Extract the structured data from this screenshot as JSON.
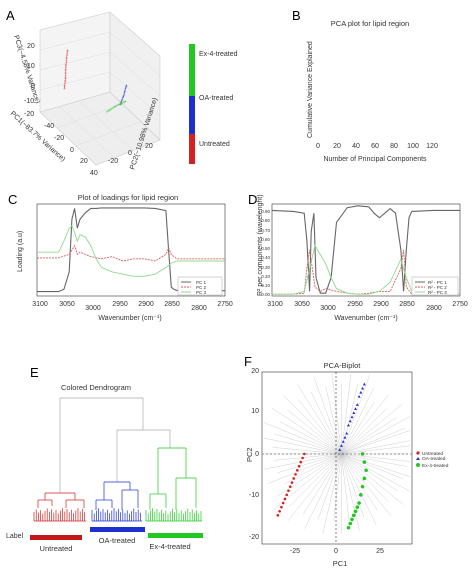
{
  "colors": {
    "ex4": "#22c822",
    "oa": "#1e2fd0",
    "untreated": "#d42020",
    "pc1": "#666666",
    "pc2": "#d95f5f",
    "pc3": "#8fd98f",
    "tree": "#aaaaaa",
    "biplot_lines": "#bbbbbb"
  },
  "panelA": {
    "letter": "A",
    "zlabel": "PC3(~4.58% Variance)",
    "xlabel": "PC1(~83.7% Variance)",
    "ylabel": "PC2(~10.98% Variance)",
    "zticks": [
      "20",
      "10",
      "0",
      "-10",
      "-20"
    ],
    "xticks": [
      "-40",
      "-20",
      "0",
      "20",
      "40"
    ],
    "yticks": [
      "-20",
      "0",
      "20"
    ],
    "legend": [
      "Ex-4-treated",
      "OA-treated",
      "Untreated"
    ]
  },
  "panelB": {
    "letter": "B",
    "title": "PCA plot for lipid region",
    "ylabel": "Cumulative Variance Explained",
    "xlabel": "Number of Principal Components",
    "xticks": [
      "0",
      "20",
      "40",
      "60",
      "80",
      "100",
      "120"
    ]
  },
  "panelC": {
    "letter": "C",
    "title": "Plot of loadings for lipid region",
    "ylabel": "Loading (a.u)",
    "xlabel": "Wavenumber (cm⁻¹)",
    "xticks": [
      "3100",
      "3050",
      "3000",
      "2950",
      "2900",
      "2850",
      "2800",
      "2750"
    ],
    "legend": [
      "PC 1",
      "PC 2",
      "PC 3"
    ]
  },
  "panelD": {
    "letter": "D",
    "ylabel": "R² per components (wavelenght)",
    "xlabel": "Wavenumber (cm⁻¹)",
    "xticks": [
      "3100",
      "3050",
      "3000",
      "2950",
      "2900",
      "2850",
      "2800",
      "2750"
    ],
    "yticks": [
      "0.00",
      "0.10",
      "0.20",
      "0.30",
      "0.40",
      "0.50",
      "0.60",
      "0.70",
      "0.80",
      "0.90"
    ],
    "legend": [
      "R² - PC 1",
      "R² - PC 2",
      "R² - PC 3"
    ]
  },
  "panelE": {
    "letter": "E",
    "title": "Colored Dendrogram",
    "label_caption": "Label",
    "groups": [
      "Untreated",
      "OA-treated",
      "Ex-4-treated"
    ]
  },
  "panelF": {
    "letter": "F",
    "title": "PCA-Biplot",
    "xlabel": "PC1",
    "ylabel": "PC2",
    "xticks": [
      "-25",
      "0",
      "25"
    ],
    "yticks": [
      "20",
      "10",
      "0",
      "-10",
      "-20"
    ],
    "legend": [
      "Untreated",
      "OA-treated",
      "Ex-4-treated"
    ]
  },
  "chart_data": [
    {
      "type": "scatter",
      "panel": "A",
      "xlabel": "PC1(~83.7% Variance)",
      "ylabel": "PC2(~10.98% Variance)",
      "zlabel": "PC3(~4.58% Variance)",
      "series": [
        {
          "name": "Untreated",
          "description_points": [
            [
              -30,
              -5,
              15
            ],
            [
              -28,
              -8,
              10
            ],
            [
              -26,
              -10,
              5
            ],
            [
              -25,
              -12,
              0
            ]
          ]
        },
        {
          "name": "OA-treated",
          "description_points": [
            [
              5,
              20,
              0
            ],
            [
              8,
              15,
              -2
            ],
            [
              10,
              10,
              -4
            ]
          ]
        },
        {
          "name": "Ex-4-treated",
          "description_points": [
            [
              20,
              -10,
              5
            ],
            [
              25,
              -5,
              8
            ],
            [
              30,
              0,
              10
            ]
          ]
        }
      ]
    },
    {
      "type": "line",
      "panel": "C",
      "title": "Plot of loadings for lipid region",
      "xlabel": "Wavenumber (cm⁻¹)",
      "ylabel": "Loading (a.u)",
      "series": [
        {
          "name": "PC 1",
          "x": [
            3100,
            3060,
            3050,
            3040,
            3035,
            3030,
            3025,
            3020,
            3010,
            3000,
            2990,
            2980,
            2960,
            2940,
            2920,
            2900,
            2880,
            2860,
            2855,
            2850,
            2845,
            2840,
            2800,
            2750
          ],
          "y": [
            -0.95,
            -0.95,
            -0.9,
            -0.5,
            0.7,
            0.95,
            0.5,
            0.7,
            0.85,
            0.95,
            0.95,
            0.96,
            0.96,
            0.96,
            0.96,
            0.96,
            0.95,
            0.9,
            0.0,
            -0.85,
            -0.9,
            -0.92,
            -0.93,
            -0.93
          ]
        },
        {
          "name": "PC 2",
          "x": [
            3100,
            3060,
            3040,
            3030,
            3025,
            3020,
            3000,
            2980,
            2960,
            2940,
            2920,
            2900,
            2880,
            2860,
            2855,
            2850,
            2840,
            2800,
            2750
          ],
          "y": [
            -0.18,
            -0.18,
            -0.1,
            0.1,
            -0.1,
            -0.05,
            -0.15,
            -0.2,
            -0.15,
            -0.25,
            -0.2,
            -0.2,
            -0.25,
            -0.1,
            0.05,
            -0.1,
            -0.2,
            -0.2,
            -0.2
          ]
        },
        {
          "name": "PC 3",
          "x": [
            3100,
            3060,
            3050,
            3040,
            3035,
            3030,
            3025,
            3020,
            3010,
            3000,
            2990,
            2980,
            2960,
            2940,
            2920,
            2900,
            2880,
            2860,
            2850,
            2840,
            2800,
            2750
          ],
          "y": [
            -0.05,
            -0.05,
            0.2,
            0.5,
            0.55,
            0.4,
            0.2,
            0.35,
            0.3,
            0.1,
            -0.2,
            -0.4,
            -0.5,
            -0.55,
            -0.6,
            -0.6,
            -0.55,
            -0.4,
            -0.3,
            -0.25,
            -0.25,
            -0.25
          ]
        }
      ]
    },
    {
      "type": "line",
      "panel": "D",
      "xlabel": "Wavenumber (cm⁻¹)",
      "ylabel": "R² per components (wavelenght)",
      "ylim": [
        0,
        1
      ],
      "series": [
        {
          "name": "R² - PC 1",
          "x": [
            3100,
            3060,
            3040,
            3035,
            3030,
            3027,
            3022,
            3018,
            3010,
            3000,
            2990,
            2980,
            2960,
            2940,
            2920,
            2910,
            2900,
            2890,
            2880,
            2870,
            2860,
            2855,
            2850,
            2845,
            2840,
            2800,
            2750
          ],
          "y": [
            0.93,
            0.92,
            0.9,
            0.6,
            0.05,
            0.7,
            0.9,
            0.2,
            0.03,
            0.03,
            0.2,
            0.8,
            0.96,
            0.98,
            0.97,
            0.9,
            0.85,
            0.9,
            0.95,
            0.9,
            0.5,
            0.05,
            0.5,
            0.85,
            0.92,
            0.93,
            0.93
          ]
        },
        {
          "name": "R² - PC 2",
          "x": [
            3100,
            3060,
            3040,
            3035,
            3030,
            3020,
            3010,
            3000,
            2980,
            2960,
            2940,
            2920,
            2900,
            2880,
            2860,
            2855,
            2850,
            2840,
            2800,
            2750
          ],
          "y": [
            0.02,
            0.02,
            0.03,
            0.3,
            0.5,
            0.1,
            0.05,
            0.08,
            0.05,
            0.03,
            0.02,
            0.03,
            0.05,
            0.05,
            0.3,
            0.5,
            0.1,
            0.02,
            0.02,
            0.02
          ]
        },
        {
          "name": "R² - PC 3",
          "x": [
            3100,
            3060,
            3040,
            3030,
            3020,
            3010,
            3000,
            2990,
            2980,
            2960,
            2940,
            2920,
            2900,
            2880,
            2860,
            2850,
            2840,
            2800,
            2750
          ],
          "y": [
            0.02,
            0.02,
            0.05,
            0.3,
            0.55,
            0.45,
            0.35,
            0.2,
            0.08,
            0.03,
            0.02,
            0.02,
            0.05,
            0.15,
            0.4,
            0.2,
            0.05,
            0.02,
            0.02
          ]
        }
      ]
    },
    {
      "type": "scatter",
      "panel": "F",
      "title": "PCA-Biplot",
      "xlabel": "PC1",
      "ylabel": "PC2",
      "series": [
        {
          "name": "Untreated",
          "x": [
            -21,
            -22,
            -23,
            -24,
            -25,
            -26,
            -27,
            -28,
            -29,
            -30,
            -31,
            -32,
            -33,
            -34,
            -35,
            -36
          ],
          "y": [
            0,
            -1,
            -2,
            -3,
            -4,
            -5,
            -6,
            -7,
            -8,
            -9,
            -10,
            -11,
            -12,
            -13,
            -14,
            -15
          ]
        },
        {
          "name": "OA-treated",
          "x": [
            13,
            12,
            11,
            10,
            9,
            8,
            7,
            6,
            5,
            4,
            3,
            2,
            1,
            0,
            -1
          ],
          "y": [
            17,
            16,
            15,
            14,
            12,
            11,
            10,
            9,
            8,
            7,
            5,
            4,
            3,
            2,
            1
          ]
        },
        {
          "name": "Ex-4-treated",
          "x": [
            12,
            13,
            14,
            13,
            12,
            11,
            10,
            9,
            8,
            7,
            6,
            5,
            4
          ],
          "y": [
            0,
            -2,
            -4,
            -6,
            -8,
            -10,
            -12,
            -13,
            -14,
            -15,
            -16,
            -17,
            -18
          ]
        }
      ]
    }
  ]
}
